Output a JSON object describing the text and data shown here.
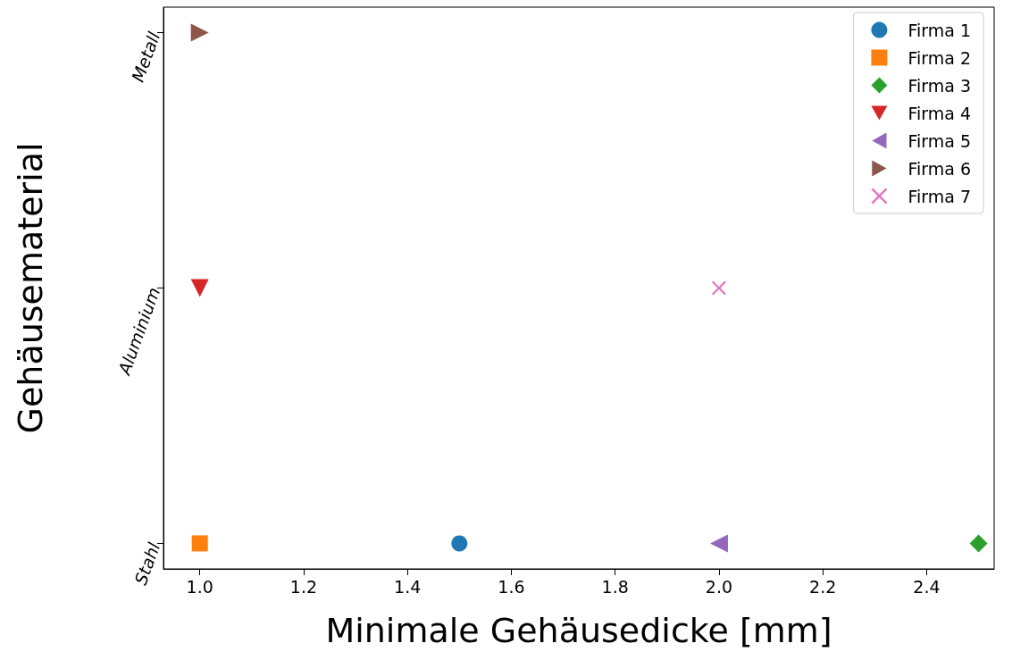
{
  "chart_data": {
    "type": "scatter",
    "xlabel": "Minimale Gehäusedicke [mm]",
    "ylabel": "Gehäusematerial",
    "orientation": "horizontal",
    "categories": [
      "Metall",
      "Aluminium",
      "Stahl"
    ],
    "xlim": [
      0.93,
      2.53
    ],
    "xticks": [
      {
        "value": 1.0,
        "label": "1.0"
      },
      {
        "value": 1.2,
        "label": "1.2"
      },
      {
        "value": 1.4,
        "label": "1.4"
      },
      {
        "value": 1.6,
        "label": "1.6"
      },
      {
        "value": 1.8,
        "label": "1.8"
      },
      {
        "value": 2.0,
        "label": "2.0"
      },
      {
        "value": 2.2,
        "label": "2.2"
      },
      {
        "value": 2.4,
        "label": "2.4"
      }
    ],
    "legend": "top right",
    "grid": false,
    "series": [
      {
        "name": "Firma 1",
        "color": "#1f77b4",
        "marker": "circle",
        "values": [
          null,
          null,
          1.5
        ]
      },
      {
        "name": "Firma 2",
        "color": "#ff7f0e",
        "marker": "square",
        "values": [
          null,
          null,
          1.0
        ]
      },
      {
        "name": "Firma 3",
        "color": "#2ca02c",
        "marker": "diamond",
        "values": [
          null,
          null,
          2.5
        ]
      },
      {
        "name": "Firma 4",
        "color": "#d62728",
        "marker": "triangle-down",
        "values": [
          null,
          1.0,
          null
        ]
      },
      {
        "name": "Firma 5",
        "color": "#9467bd",
        "marker": "triangle-left",
        "values": [
          null,
          null,
          2.0
        ]
      },
      {
        "name": "Firma 6",
        "color": "#8c564b",
        "marker": "triangle-right",
        "values": [
          1.0,
          null,
          null
        ]
      },
      {
        "name": "Firma 7",
        "color": "#e377c2",
        "marker": "cross",
        "values": [
          null,
          2.0,
          null
        ]
      }
    ]
  }
}
